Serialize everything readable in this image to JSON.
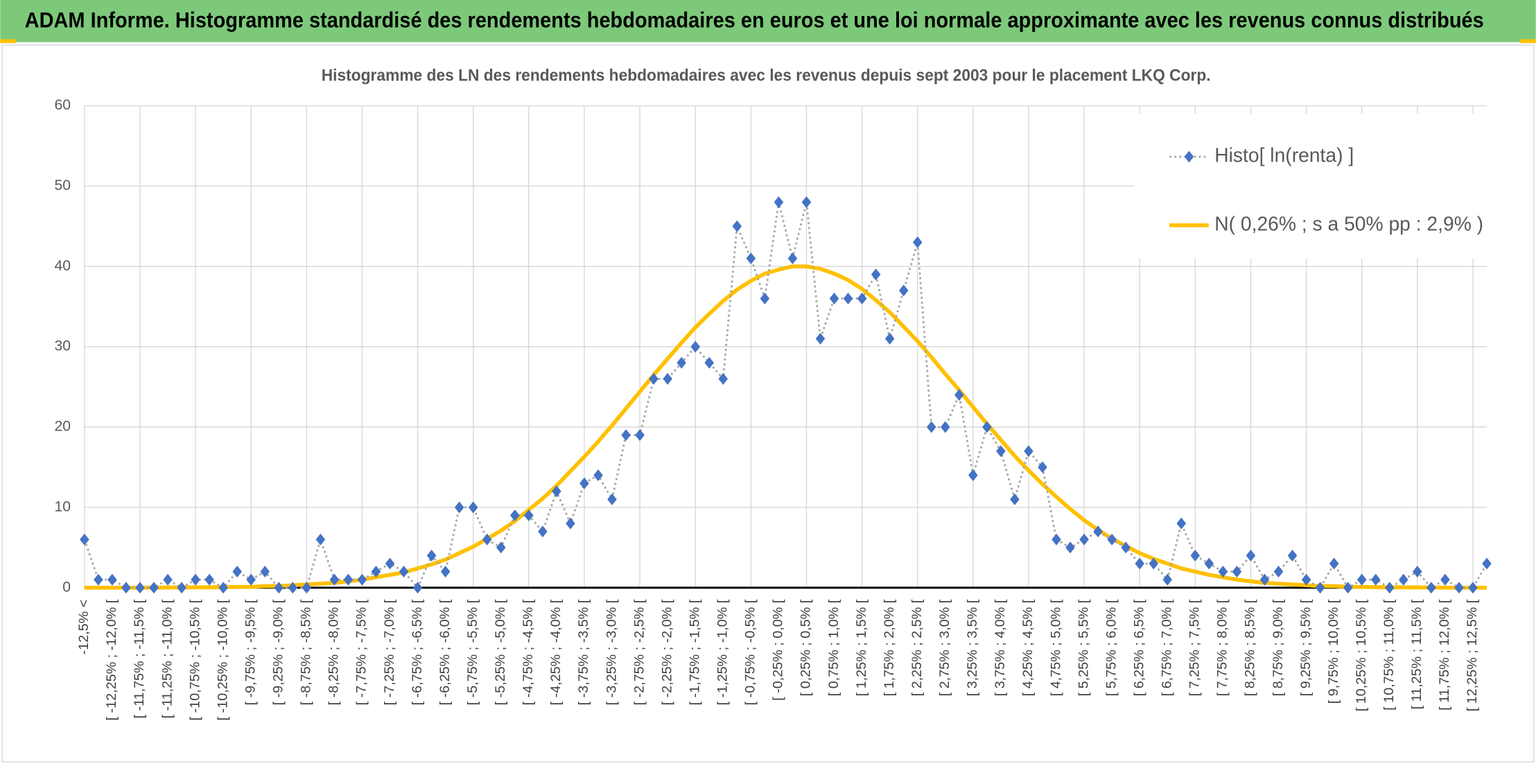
{
  "chart_data": {
    "type": "line",
    "title": "ADAM Informe. Histogramme standardisé des rendements hebdomadaires en euros et une loi normale approximante avec les revenus connus distribués",
    "subtitle": "Histogramme des LN des rendements hebdomadaires avec les revenus depuis sept 2003 pour le placement LKQ Corp.",
    "categories": [
      "-12,5% <",
      null,
      "[ -12,25% ; -12,0% [",
      null,
      "[ -11,75% ; -11,5% [",
      null,
      "[ -11,25% ; -11,0% [",
      null,
      "[ -10,75% ; -10,5% [",
      null,
      "[ -10,25% ; -10,0% [",
      null,
      "[ -9,75% ; -9,5% [",
      null,
      "[ -9,25% ; -9,0% [",
      null,
      "[ -8,75% ; -8,5% [",
      null,
      "[ -8,25% ; -8,0% [",
      null,
      "[ -7,75% ; -7,5% [",
      null,
      "[ -7,25% ; -7,0% [",
      null,
      "[ -6,75% ; -6,5% [",
      null,
      "[ -6,25% ; -6,0% [",
      null,
      "[ -5,75% ; -5,5% [",
      null,
      "[ -5,25% ; -5,0% [",
      null,
      "[ -4,75% ; -4,5% [",
      null,
      "[ -4,25% ; -4,0% [",
      null,
      "[ -3,75% ; -3,5% [",
      null,
      "[ -3,25% ; -3,0% [",
      null,
      "[ -2,75% ; -2,5% [",
      null,
      "[ -2,25% ; -2,0% [",
      null,
      "[ -1,75% ; -1,5% [",
      null,
      "[ -1,25% ; -1,0% [",
      null,
      "[ -0,75% ; -0,5% [",
      null,
      "[ -0,25% ; 0,0% [",
      null,
      "[ 0,25% ; 0,5% [",
      null,
      "[ 0,75% ; 1,0% [",
      null,
      "[ 1,25% ; 1,5% [",
      null,
      "[ 1,75% ; 2,0% [",
      null,
      "[ 2,25% ; 2,5% [",
      null,
      "[ 2,75% ; 3,0% [",
      null,
      "[ 3,25% ; 3,5% [",
      null,
      "[ 3,75% ; 4,0% [",
      null,
      "[ 4,25% ; 4,5% [",
      null,
      "[ 4,75% ; 5,0% [",
      null,
      "[ 5,25% ; 5,5% [",
      null,
      "[ 5,75% ; 6,0% [",
      null,
      "[ 6,25% ; 6,5% [",
      null,
      "[ 6,75% ; 7,0% [",
      null,
      "[ 7,25% ; 7,5% [",
      null,
      "[ 7,75% ; 8,0% [",
      null,
      "[ 8,25% ; 8,5% [",
      null,
      "[ 8,75% ; 9,0% [",
      null,
      "[ 9,25% ; 9,5% [",
      null,
      "[ 9,75% ; 10,0% [",
      null,
      "[ 10,25% ; 10,5% [",
      null,
      "[ 10,75% ; 11,0% [",
      null,
      "[ 11,25% ; 11,5% [",
      null,
      "[ 11,75% ; 12,0% [",
      null,
      "[ 12,25% ; 12,5% [",
      null
    ],
    "series": [
      {
        "name": "Histo[ ln(renta) ]",
        "color": "#4472c4",
        "line_color": "#a5a5a5",
        "line_style": "dotted",
        "marker": "diamond",
        "values": [
          6,
          1,
          1,
          0,
          0,
          0,
          1,
          0,
          1,
          1,
          0,
          2,
          1,
          2,
          0,
          0,
          0,
          6,
          1,
          1,
          1,
          2,
          3,
          2,
          0,
          4,
          2,
          10,
          10,
          6,
          5,
          9,
          9,
          7,
          12,
          8,
          13,
          14,
          11,
          19,
          19,
          26,
          26,
          28,
          30,
          28,
          26,
          45,
          41,
          36,
          48,
          41,
          48,
          31,
          36,
          36,
          36,
          39,
          31,
          37,
          43,
          20,
          20,
          24,
          14,
          20,
          17,
          11,
          17,
          15,
          6,
          5,
          6,
          7,
          6,
          5,
          3,
          3,
          1,
          8,
          4,
          3,
          2,
          2,
          4,
          1,
          2,
          4,
          1,
          0,
          3,
          0,
          1,
          1,
          0,
          1,
          2,
          0,
          1,
          0,
          0,
          3
        ]
      },
      {
        "name": "N( 0,26% ; s a 50% pp : 2,9% )",
        "color": "#ffc000",
        "line_style": "solid",
        "marker": "none",
        "values": [
          0,
          0,
          0,
          0,
          0,
          0.01,
          0.02,
          0.03,
          0.04,
          0.05,
          0.07,
          0.1,
          0.1,
          0.2,
          0.2,
          0.3,
          0.4,
          0.5,
          0.6,
          0.8,
          1.0,
          1.3,
          1.6,
          1.9,
          2.4,
          2.9,
          3.5,
          4.3,
          5.1,
          6.1,
          7.1,
          8.3,
          9.7,
          11.1,
          12.7,
          14.5,
          16.3,
          18.2,
          20.2,
          22.3,
          24.4,
          26.5,
          28.5,
          30.5,
          32.4,
          34.1,
          35.7,
          37.1,
          38.2,
          39.1,
          39.6,
          40.0,
          40.0,
          39.7,
          39.1,
          38.3,
          37.2,
          35.8,
          34.3,
          32.5,
          30.7,
          28.7,
          26.6,
          24.6,
          22.5,
          20.4,
          18.4,
          16.4,
          14.6,
          12.9,
          11.3,
          9.8,
          8.4,
          7.2,
          6.1,
          5.2,
          4.3,
          3.6,
          3.0,
          2.4,
          2.0,
          1.6,
          1.3,
          1.0,
          0.8,
          0.6,
          0.5,
          0.4,
          0.3,
          0.2,
          0.2,
          0.1,
          0.1,
          0.07,
          0.05,
          0.04,
          0.03,
          0.02,
          0.01,
          0,
          0,
          0
        ]
      }
    ],
    "ylim": [
      0,
      60
    ],
    "yticks": [
      0,
      10,
      20,
      30,
      40,
      50,
      60
    ],
    "grid": true,
    "legend": "top-right"
  }
}
